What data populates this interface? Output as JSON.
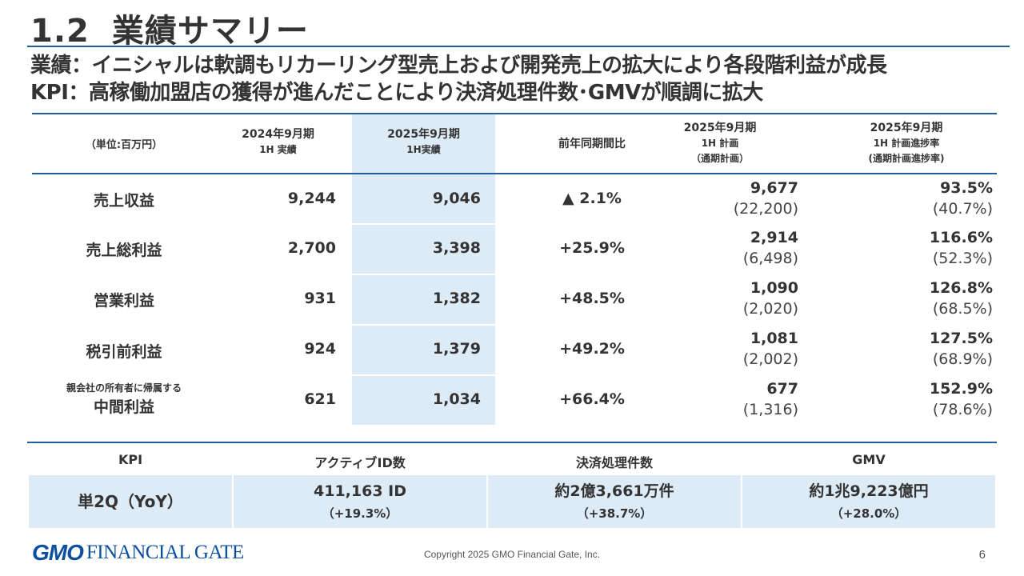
{
  "title": {
    "number": "1.2",
    "text": "業績サマリー"
  },
  "subtitles": [
    "業績：イニシャルは軟調もリカーリング型売上および開発売上の拡大により各段階利益が成長",
    "KPI：高稼働加盟店の獲得が進んだことにより決済処理件数･GMVが順調に拡大"
  ],
  "table": {
    "unit": "（単位:百万円）",
    "headers": {
      "prev_line1": "2024年9月期",
      "prev_line2": "1H 実績",
      "curr_line1": "2025年9月期",
      "curr_line2": "1H実績",
      "yoy": "前年同期間比",
      "plan_line1": "2025年9月期",
      "plan_line2": "1H 計画",
      "plan_line3": "（通期計画）",
      "prog_line1": "2025年9月期",
      "prog_line2": "1H 計画進捗率",
      "prog_line3": "(通期計画進捗率)"
    },
    "rows": [
      {
        "label": "売上収益",
        "sub": "",
        "prev": "9,244",
        "curr": "9,046",
        "yoy": "▲ 2.1%",
        "plan": "9,677",
        "plan_full": "(22,200)",
        "prog": "93.5%",
        "prog_full": "(40.7%)"
      },
      {
        "label": "売上総利益",
        "sub": "",
        "prev": "2,700",
        "curr": "3,398",
        "yoy": "+25.9%",
        "plan": "2,914",
        "plan_full": "(6,498)",
        "prog": "116.6%",
        "prog_full": "(52.3%)"
      },
      {
        "label": "営業利益",
        "sub": "",
        "prev": "931",
        "curr": "1,382",
        "yoy": "+48.5%",
        "plan": "1,090",
        "plan_full": "(2,020)",
        "prog": "126.8%",
        "prog_full": "(68.5%)"
      },
      {
        "label": "税引前利益",
        "sub": "",
        "prev": "924",
        "curr": "1,379",
        "yoy": "+49.2%",
        "plan": "1,081",
        "plan_full": "(2,002)",
        "prog": "127.5%",
        "prog_full": "(68.9%)"
      },
      {
        "label": "中間利益",
        "sub": "親会社の所有者に帰属する",
        "prev": "621",
        "curr": "1,034",
        "yoy": "+66.4%",
        "plan": "677",
        "plan_full": "(1,316)",
        "prog": "152.9%",
        "prog_full": "(78.6%)"
      }
    ]
  },
  "kpi": {
    "header": "KPI",
    "columns": [
      "アクティブID数",
      "決済処理件数",
      "GMV"
    ],
    "row_label": "単2Q（YoY）",
    "values": [
      {
        "main": "411,163 ID",
        "yoy": "（+19.3%）"
      },
      {
        "main": "約2億3,661万件",
        "yoy": "（+38.7%）"
      },
      {
        "main": "約1兆9,223億円",
        "yoy": "（+28.0%）"
      }
    ]
  },
  "footer": {
    "logo_gmo": "GMO",
    "logo_text": "FINANCIAL GATE",
    "copyright": "Copyright 2025 GMO Financial Gate, Inc.",
    "page": "6"
  },
  "colors": {
    "accent": "#1f5c99",
    "highlight": "#ddebf7",
    "logo": "#0b4fa0"
  }
}
